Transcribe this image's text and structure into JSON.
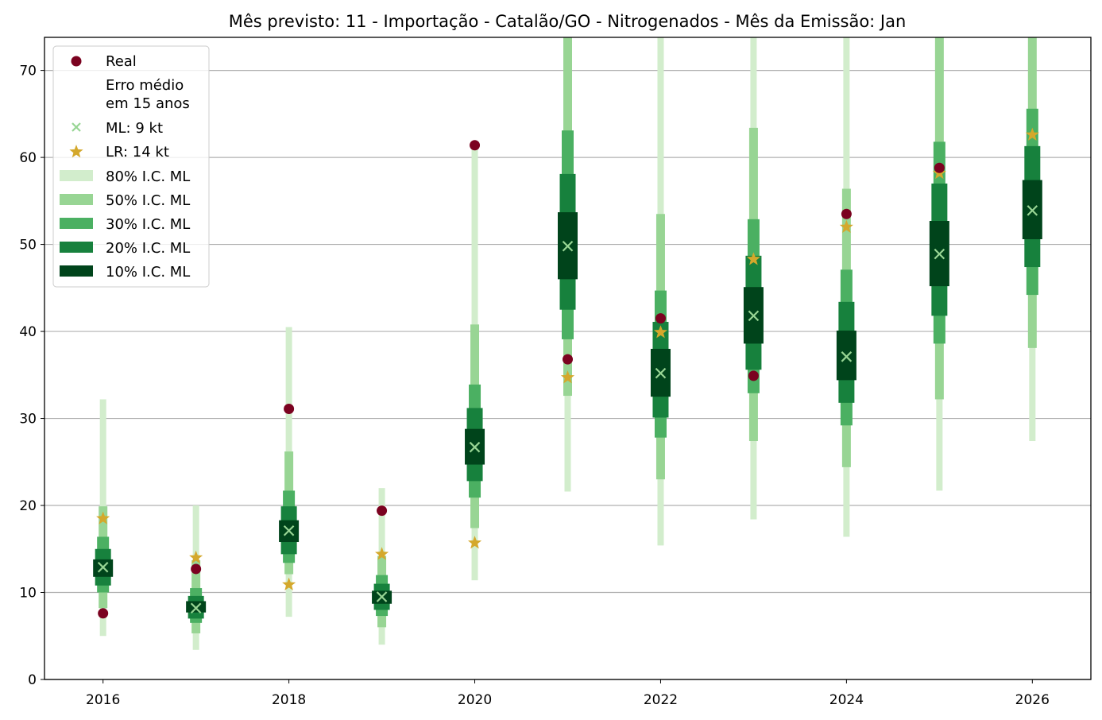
{
  "chart_data": {
    "type": "interval-forecast",
    "title": "Mês previsto: 11 - Importação - Catalão/GO - Nitrogenados - Mês da Emissão: Jan",
    "xlabel": "",
    "ylabel": "",
    "xlim": [
      2015.37,
      2026.63
    ],
    "ylim": [
      0,
      73.8
    ],
    "grid": "horizontal",
    "x_ticks": [
      2016,
      2018,
      2020,
      2022,
      2024,
      2026
    ],
    "y_ticks": [
      0,
      10,
      20,
      30,
      40,
      50,
      60,
      70
    ],
    "legend": {
      "placement": "top-left",
      "entries": [
        {
          "key": "real",
          "label": "Real"
        },
        {
          "key": "note",
          "label": "Erro médio\nem 15 anos",
          "lines": [
            "Erro médio",
            "em 15 anos"
          ]
        },
        {
          "key": "ml",
          "label": "ML: 9 kt"
        },
        {
          "key": "lr",
          "label": "LR: 14 kt"
        },
        {
          "key": "ci80",
          "label": "80% I.C. ML"
        },
        {
          "key": "ci50",
          "label": "50% I.C. ML"
        },
        {
          "key": "ci30",
          "label": "30% I.C. ML"
        },
        {
          "key": "ci20",
          "label": "20% I.C. ML"
        },
        {
          "key": "ci10",
          "label": "10% I.C. ML"
        }
      ]
    },
    "colors": {
      "real": "#7b0220",
      "ml": "#98d594",
      "lr": "#d4a82c",
      "ci80": "#d2edcc",
      "ci50": "#98d594",
      "ci30": "#4bb062",
      "ci20": "#17813d",
      "ci10": "#00441b"
    },
    "series": [
      {
        "x": 2016,
        "ci80": [
          5.0,
          32.2
        ],
        "ci50": [
          8.2,
          19.9
        ],
        "ci30": [
          10.0,
          16.4
        ],
        "ci20": [
          10.8,
          15.0
        ],
        "ci10": [
          11.8,
          13.8
        ],
        "ml": 12.9,
        "lr": 18.5,
        "real": 7.6
      },
      {
        "x": 2017,
        "ci80": [
          3.4,
          20.0
        ],
        "ci50": [
          5.3,
          13.7
        ],
        "ci30": [
          6.5,
          10.5
        ],
        "ci20": [
          7.0,
          9.6
        ],
        "ci10": [
          7.7,
          9.0
        ],
        "ml": 8.2,
        "lr": 14.0,
        "real": 12.7
      },
      {
        "x": 2018,
        "ci80": [
          7.2,
          40.5
        ],
        "ci50": [
          12.1,
          26.2
        ],
        "ci30": [
          13.4,
          21.7
        ],
        "ci20": [
          14.4,
          19.9
        ],
        "ci10": [
          15.8,
          18.3
        ],
        "ml": 17.1,
        "lr": 10.9,
        "real": 31.1
      },
      {
        "x": 2019,
        "ci80": [
          4.0,
          22.0
        ],
        "ci50": [
          6.0,
          14.2
        ],
        "ci30": [
          7.3,
          12.0
        ],
        "ci20": [
          8.0,
          11.0
        ],
        "ci10": [
          8.7,
          10.2
        ],
        "ml": 9.5,
        "lr": 14.4,
        "real": 19.4
      },
      {
        "x": 2020,
        "ci80": [
          11.4,
          61.2
        ],
        "ci50": [
          17.4,
          40.8
        ],
        "ci30": [
          20.9,
          33.9
        ],
        "ci20": [
          22.8,
          31.2
        ],
        "ci10": [
          24.7,
          28.8
        ],
        "ml": 26.7,
        "lr": 15.7,
        "real": 61.4
      },
      {
        "x": 2021,
        "ci80": [
          21.6,
          85.0
        ],
        "ci50": [
          32.6,
          78.0
        ],
        "ci30": [
          39.1,
          63.1
        ],
        "ci20": [
          42.5,
          58.1
        ],
        "ci10": [
          46.0,
          53.7
        ],
        "ml": 49.8,
        "lr": 34.7,
        "real": 36.8
      },
      {
        "x": 2022,
        "ci80": [
          15.4,
          80.0
        ],
        "ci50": [
          23.0,
          53.5
        ],
        "ci30": [
          27.8,
          44.7
        ],
        "ci20": [
          30.1,
          41.1
        ],
        "ci10": [
          32.5,
          38.0
        ],
        "ml": 35.2,
        "lr": 39.9,
        "real": 41.5
      },
      {
        "x": 2023,
        "ci80": [
          18.4,
          82.0
        ],
        "ci50": [
          27.4,
          63.4
        ],
        "ci30": [
          32.9,
          52.9
        ],
        "ci20": [
          35.6,
          48.7
        ],
        "ci10": [
          38.6,
          45.1
        ],
        "ml": 41.8,
        "lr": 48.3,
        "real": 34.9
      },
      {
        "x": 2024,
        "ci80": [
          16.4,
          80.0
        ],
        "ci50": [
          24.4,
          56.4
        ],
        "ci30": [
          29.2,
          47.1
        ],
        "ci20": [
          31.8,
          43.4
        ],
        "ci10": [
          34.4,
          40.1
        ],
        "ml": 37.1,
        "lr": 52.0,
        "real": 53.5
      },
      {
        "x": 2025,
        "ci80": [
          21.7,
          85.0
        ],
        "ci50": [
          32.2,
          78.0
        ],
        "ci30": [
          38.6,
          61.8
        ],
        "ci20": [
          41.8,
          57.0
        ],
        "ci10": [
          45.2,
          52.7
        ],
        "ml": 48.9,
        "lr": 58.2,
        "real": 58.8
      },
      {
        "x": 2026,
        "ci80": [
          27.4,
          88.0
        ],
        "ci50": [
          38.1,
          80.0
        ],
        "ci30": [
          44.2,
          65.6
        ],
        "ci20": [
          47.4,
          61.3
        ],
        "ci10": [
          50.6,
          57.4
        ],
        "ml": 53.9,
        "lr": 62.6,
        "real": null
      }
    ]
  }
}
